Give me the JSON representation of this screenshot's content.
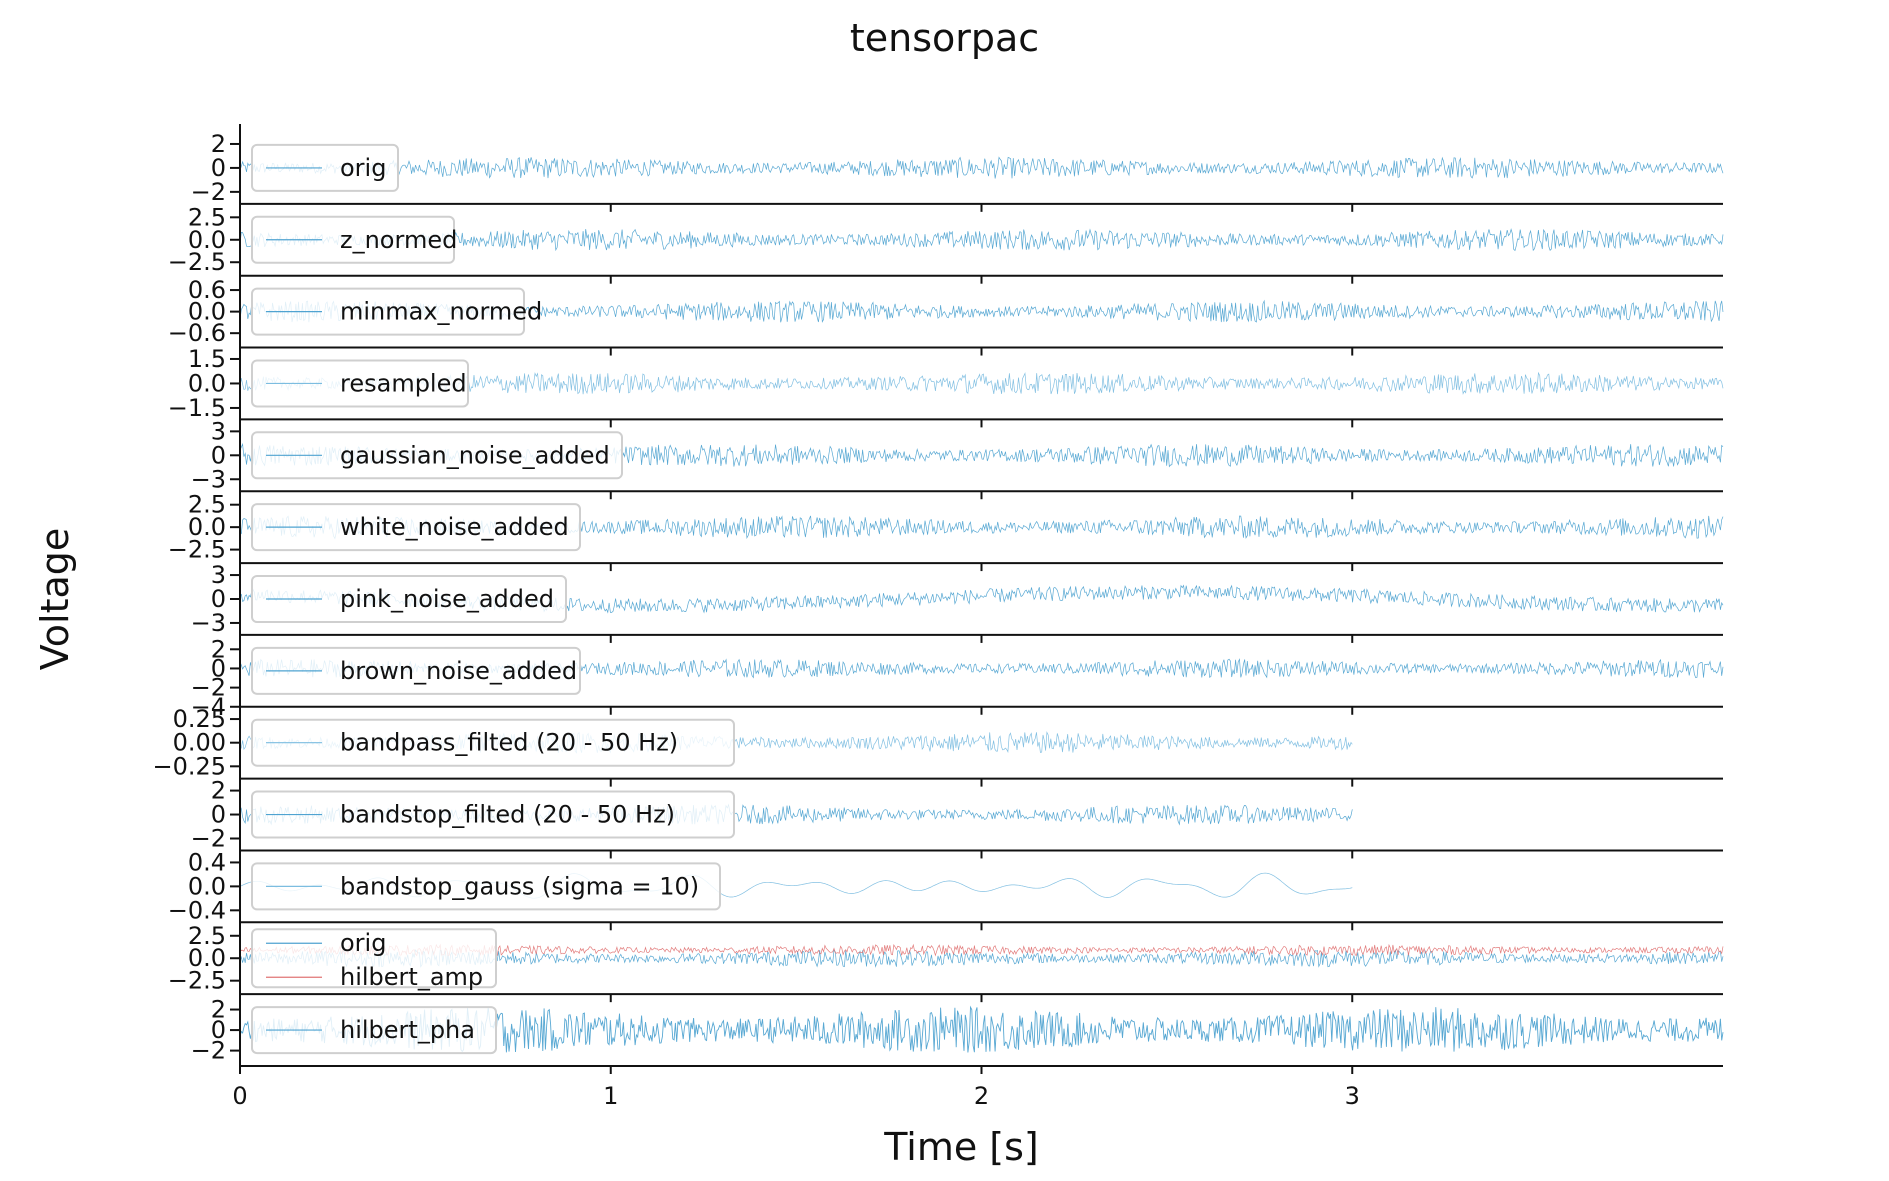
{
  "chart_data": {
    "type": "line",
    "title": "tensorpac",
    "xlabel": "Time [s]",
    "ylabel": "Voltage",
    "xlim": [
      0,
      4
    ],
    "xticks": [
      "0",
      "1",
      "2",
      "3"
    ],
    "grid": false,
    "legend_position": "left",
    "panels": [
      {
        "ylim": [
          -3,
          3
        ],
        "yticks": [
          "2",
          "0",
          "−2"
        ],
        "series": [
          {
            "name": "orig",
            "color": "#4fa3d1",
            "x_end": 4.0,
            "amplitude": 1.2
          }
        ]
      },
      {
        "ylim": [
          -4,
          4
        ],
        "yticks": [
          "2.5",
          "0.0",
          "−2.5"
        ],
        "series": [
          {
            "name": "z_normed",
            "color": "#4fa3d1",
            "x_end": 4.0,
            "amplitude": 1.6
          }
        ]
      },
      {
        "ylim": [
          -1,
          1
        ],
        "yticks": [
          "0.6",
          "0.0",
          "−0.6"
        ],
        "series": [
          {
            "name": "minmax_normed",
            "color": "#4fa3d1",
            "x_end": 4.0,
            "amplitude": 0.4
          }
        ]
      },
      {
        "ylim": [
          -2.2,
          2.2
        ],
        "yticks": [
          "1.5",
          "0.0",
          "−1.5"
        ],
        "series": [
          {
            "name": "resampled",
            "color": "#7cbde0",
            "x_end": 4.0,
            "amplitude": 0.9
          }
        ]
      },
      {
        "ylim": [
          -4.5,
          4.5
        ],
        "yticks": [
          "3",
          "0",
          "−3"
        ],
        "series": [
          {
            "name": "gaussian_noise_added",
            "color": "#4fa3d1",
            "x_end": 4.0,
            "amplitude": 1.9
          }
        ]
      },
      {
        "ylim": [
          -4,
          4
        ],
        "yticks": [
          "2.5",
          "0.0",
          "−2.5"
        ],
        "series": [
          {
            "name": "white_noise_added",
            "color": "#4fa3d1",
            "x_end": 4.0,
            "amplitude": 1.7
          }
        ]
      },
      {
        "ylim": [
          -4.5,
          4.5
        ],
        "yticks": [
          "3",
          "0",
          "−3"
        ],
        "series": [
          {
            "name": "pink_noise_added",
            "color": "#4fa3d1",
            "x_end": 4.0,
            "amplitude": 1.5
          }
        ]
      },
      {
        "ylim": [
          -4,
          3.5
        ],
        "yticks": [
          "2",
          "0",
          "−2",
          "−4"
        ],
        "series": [
          {
            "name": "brown_noise_added",
            "color": "#4fa3d1",
            "x_end": 4.0,
            "amplitude": 1.3
          }
        ]
      },
      {
        "ylim": [
          -0.38,
          0.38
        ],
        "yticks": [
          "0.25",
          "0.00",
          "−0.25"
        ],
        "series": [
          {
            "name": "bandpass_filted (20 - 50 Hz)",
            "color": "#7cbde0",
            "x_end": 3.0,
            "amplitude": 0.15
          }
        ]
      },
      {
        "ylim": [
          -3,
          3
        ],
        "yticks": [
          "2",
          "0",
          "−2"
        ],
        "series": [
          {
            "name": "bandstop_filted (20 - 50 Hz)",
            "color": "#4fa3d1",
            "x_end": 3.0,
            "amplitude": 1.1
          }
        ]
      },
      {
        "ylim": [
          -0.6,
          0.6
        ],
        "yticks": [
          "0.4",
          "0.0",
          "−0.4"
        ],
        "series": [
          {
            "name": "bandstop_gauss (sigma = 10)",
            "color": "#7cbde0",
            "x_end": 3.0,
            "amplitude": 0.25
          }
        ]
      },
      {
        "ylim": [
          -4,
          4
        ],
        "yticks": [
          "2.5",
          "0.0",
          "−2.5"
        ],
        "series": [
          {
            "name": "orig",
            "color": "#4fa3d1",
            "x_end": 4.0,
            "amplitude": 1.3
          },
          {
            "name": "hilbert_amp",
            "color": "#e07575",
            "x_end": 4.0,
            "amplitude": 0.8
          }
        ]
      },
      {
        "ylim": [
          -3.5,
          3.5
        ],
        "yticks": [
          "2",
          "0",
          "−2"
        ],
        "series": [
          {
            "name": "hilbert_pha",
            "color": "#4fa3d1",
            "x_end": 4.0,
            "amplitude": 3.0
          }
        ]
      }
    ]
  }
}
